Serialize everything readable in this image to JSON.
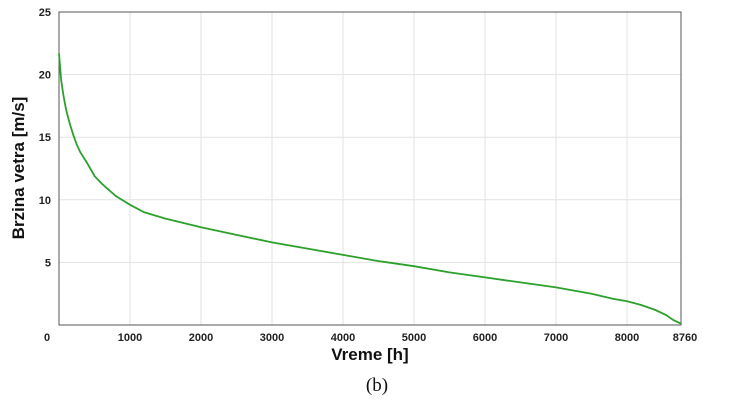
{
  "chart_data": {
    "type": "line",
    "title": "",
    "xlabel": "Vreme [h]",
    "ylabel": "Brzina vetra [m/s]",
    "xlim": [
      0,
      8760
    ],
    "ylim": [
      0,
      25
    ],
    "x_ticks": [
      0,
      1000,
      2000,
      3000,
      4000,
      5000,
      6000,
      7000,
      8000,
      8760
    ],
    "x_tick_labels": [
      "0",
      "1000",
      "2000",
      "3000",
      "4000",
      "5000",
      "6000",
      "7000",
      "8000",
      "8760"
    ],
    "y_ticks": [
      5,
      10,
      15,
      20,
      25
    ],
    "y_tick_labels": [
      "5",
      "10",
      "15",
      "20",
      "25"
    ],
    "grid": true,
    "line_color": "#2ca02c",
    "series": [
      {
        "x": [
          0,
          30,
          60,
          100,
          150,
          200,
          250,
          300,
          400,
          500,
          600,
          700,
          800,
          1000,
          1200,
          1500,
          2000,
          2500,
          3000,
          3500,
          4000,
          4500,
          5000,
          5500,
          6000,
          6500,
          7000,
          7500,
          7800,
          8000,
          8200,
          8400,
          8550,
          8650,
          8760
        ],
        "y": [
          21.7,
          19.6,
          18.4,
          17.2,
          16.1,
          15.2,
          14.4,
          13.8,
          12.9,
          11.9,
          11.3,
          10.8,
          10.3,
          9.6,
          9.0,
          8.5,
          7.8,
          7.2,
          6.6,
          6.1,
          5.6,
          5.1,
          4.7,
          4.2,
          3.8,
          3.4,
          3.0,
          2.5,
          2.1,
          1.9,
          1.6,
          1.2,
          0.8,
          0.4,
          0.1
        ]
      }
    ]
  },
  "caption": "(b)"
}
